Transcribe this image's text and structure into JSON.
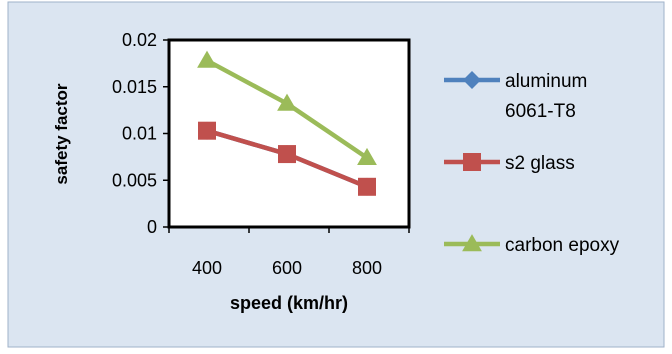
{
  "chart_data": {
    "type": "line",
    "x": [
      400,
      600,
      800
    ],
    "series": [
      {
        "name": "aluminum 6061-T8",
        "name_lines": [
          "aluminum",
          "6061-T8"
        ],
        "values": [
          0.0103,
          0.0078,
          0.0043
        ],
        "color": "#4f81bd",
        "marker": "diamond"
      },
      {
        "name": "s2 glass",
        "name_lines": [
          "s2 glass"
        ],
        "values": [
          0.0103,
          0.0078,
          0.0043
        ],
        "color": "#c0504d",
        "marker": "square"
      },
      {
        "name": "carbon epoxy",
        "name_lines": [
          "carbon epoxy"
        ],
        "values": [
          0.0178,
          0.0132,
          0.0074
        ],
        "color": "#9bbb59",
        "marker": "triangle"
      }
    ],
    "xlabel": "speed (km/hr)",
    "ylabel": "safety factor",
    "ylim": [
      0,
      0.02
    ],
    "yticks": [
      "0",
      "0.005",
      "0.01",
      "0.015",
      "0.02"
    ],
    "xticks": [
      "400",
      "600",
      "800"
    ],
    "grid": false,
    "legend": "right",
    "background": "#dbe5f1"
  }
}
